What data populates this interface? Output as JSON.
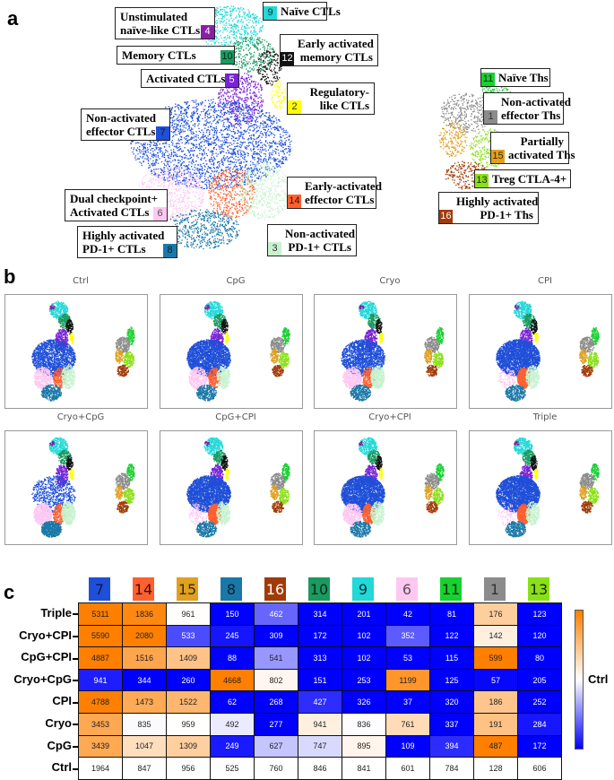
{
  "panels": {
    "a": {
      "letter": "a"
    },
    "b": {
      "letter": "b"
    },
    "c": {
      "letter": "c"
    }
  },
  "clusters": [
    {
      "id": "1",
      "name": [
        "Non-activated",
        "effector Ths"
      ],
      "color": "#8c8c8c",
      "text_color": "#333333"
    },
    {
      "id": "2",
      "name": [
        "Regulatory-",
        "like CTLs"
      ],
      "color": "#ffff00",
      "text_color": "#333333"
    },
    {
      "id": "3",
      "name": [
        "Non-activated",
        "PD-1+ CTLs"
      ],
      "color": "#c8f2cf",
      "text_color": "#333333"
    },
    {
      "id": "4",
      "name": [
        "Unstimulated",
        "naïve-like CTLs"
      ],
      "color": "#8a1fa6",
      "text_color": "#ffffff"
    },
    {
      "id": "5",
      "name": [
        "Activated CTLs"
      ],
      "color": "#7a22d8",
      "text_color": "#ffffff"
    },
    {
      "id": "6",
      "name": [
        "Dual checkpoint+",
        "Activated CTLs"
      ],
      "color": "#ffc8f2",
      "text_color": "#555555"
    },
    {
      "id": "7",
      "name": [
        "Non-activated",
        "effector CTLs"
      ],
      "color": "#1f4fd8",
      "text_color": "#0a1a4a"
    },
    {
      "id": "8",
      "name": [
        "Highly activated",
        "PD-1+ CTLs"
      ],
      "color": "#1a78a8",
      "text_color": "#0a2030"
    },
    {
      "id": "9",
      "name": [
        "Naïve CTLs"
      ],
      "color": "#22d8d8",
      "text_color": "#0a3030"
    },
    {
      "id": "10",
      "name": [
        "Memory CTLs"
      ],
      "color": "#1a9a60",
      "text_color": "#0a2a1a"
    },
    {
      "id": "11",
      "name": [
        "Naïve Ths"
      ],
      "color": "#18d030",
      "text_color": "#0a2a0a"
    },
    {
      "id": "12",
      "name": [
        "Early activated",
        "memory CTLs"
      ],
      "color": "#111111",
      "text_color": "#ffffff"
    },
    {
      "id": "13",
      "name": [
        "Treg CTLA-4+"
      ],
      "color": "#8ae018",
      "text_color": "#1a2a00"
    },
    {
      "id": "14",
      "name": [
        "Early-activated",
        "effector CTLs"
      ],
      "color": "#ff6030",
      "text_color": "#3a1000"
    },
    {
      "id": "15",
      "name": [
        "Partially",
        "activated Ths"
      ],
      "color": "#e0a020",
      "text_color": "#3a2a00"
    },
    {
      "id": "16",
      "name": [
        "Highly activated",
        "PD-1+ Ths"
      ],
      "color": "#a03a08",
      "text_color": "#ffffff"
    }
  ],
  "small_multiples": {
    "titles": [
      "Ctrl",
      "CpG",
      "Cryo",
      "CPI",
      "Cryo+CpG",
      "CpG+CPI",
      "Cryo+CPI",
      "Triple"
    ]
  },
  "chart_data": {
    "type": "heatmap",
    "title": "",
    "columns": [
      "7",
      "14",
      "15",
      "8",
      "16",
      "10",
      "9",
      "6",
      "11",
      "1",
      "13"
    ],
    "rows": [
      "Triple",
      "Cryo+CPI",
      "CpG+CPI",
      "Cryo+CpG",
      "CPI",
      "Cryo",
      "CpG",
      "Ctrl"
    ],
    "values": [
      [
        5311,
        1836,
        961,
        150,
        462,
        314,
        201,
        42,
        81,
        176,
        123
      ],
      [
        5590,
        2080,
        533,
        245,
        309,
        172,
        102,
        352,
        122,
        142,
        120
      ],
      [
        4887,
        1516,
        1409,
        88,
        541,
        313,
        102,
        53,
        115,
        599,
        80
      ],
      [
        941,
        344,
        260,
        4668,
        802,
        151,
        253,
        1199,
        125,
        57,
        205
      ],
      [
        4788,
        1473,
        1522,
        62,
        268,
        427,
        326,
        37,
        320,
        186,
        252
      ],
      [
        3453,
        835,
        959,
        492,
        277,
        941,
        836,
        761,
        337,
        191,
        284
      ],
      [
        3439,
        1047,
        1309,
        249,
        627,
        747,
        895,
        109,
        394,
        487,
        172
      ],
      [
        1964,
        847,
        956,
        525,
        760,
        846,
        841,
        601,
        784,
        128,
        606
      ]
    ],
    "reference_row": "Ctrl",
    "colorbar": {
      "label": "Ctrl",
      "high_color": "#ff7f00",
      "mid_color": "#ffffff",
      "low_color": "#0000ff"
    }
  }
}
